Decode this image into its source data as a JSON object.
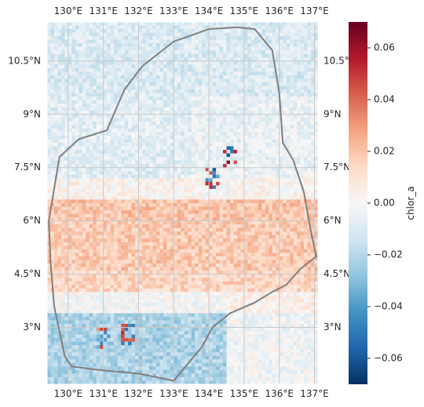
{
  "chart_data": {
    "type": "heatmap",
    "projection": "PlateCarree",
    "variable": "chlor_a",
    "lon_range": [
      129.4,
      137.1
    ],
    "lat_range": [
      1.4,
      11.6
    ],
    "color_scale": {
      "cmap": "RdBu_r",
      "vmin": -0.07,
      "vmax": 0.07
    },
    "grid": true,
    "lon_ticks": [
      130,
      131,
      132,
      133,
      134,
      135,
      136,
      137
    ],
    "lat_ticks": [
      3,
      4.5,
      6,
      7.5,
      9,
      10.5
    ],
    "lon_tick_labels": [
      "130°E",
      "131°E",
      "132°E",
      "133°E",
      "134°E",
      "135°E",
      "136°E",
      "137°E"
    ],
    "lat_tick_labels": [
      "3°N",
      "4.5°N",
      "6°N",
      "7.5°N",
      "9°N",
      "10.5°N"
    ],
    "colorbar": {
      "label": "chlor_a",
      "ticks": [
        -0.06,
        -0.04,
        -0.02,
        0.0,
        0.02,
        0.04,
        0.06
      ],
      "tick_labels": [
        "−0.06",
        "−0.04",
        "−0.02",
        "0.00",
        "0.02",
        "0.04",
        "0.06"
      ]
    },
    "anomaly_pattern": {
      "north_of_7N": -0.008,
      "band_4_to_7N": 0.018,
      "south_of_3_5N": -0.022,
      "hotspots": [
        {
          "lon": 134.6,
          "lat": 7.8,
          "value": 0.065
        },
        {
          "lon": 134.1,
          "lat": 7.2,
          "value": -0.06
        },
        {
          "lon": 131.7,
          "lat": 2.8,
          "value": 0.06
        },
        {
          "lon": 131.0,
          "lat": 2.7,
          "value": -0.05
        }
      ]
    },
    "boundary_outline": [
      [
        129.45,
        6.0
      ],
      [
        129.75,
        7.8
      ],
      [
        130.3,
        8.3
      ],
      [
        131.1,
        8.55
      ],
      [
        131.25,
        8.9
      ],
      [
        131.6,
        9.7
      ],
      [
        132.1,
        10.35
      ],
      [
        133.0,
        11.05
      ],
      [
        134.0,
        11.4
      ],
      [
        134.8,
        11.45
      ],
      [
        135.3,
        11.4
      ],
      [
        135.8,
        10.8
      ],
      [
        136.0,
        9.6
      ],
      [
        136.1,
        8.2
      ],
      [
        136.4,
        7.7
      ],
      [
        136.7,
        6.8
      ],
      [
        136.9,
        5.7
      ],
      [
        137.05,
        5.0
      ],
      [
        136.6,
        4.65
      ],
      [
        136.2,
        4.2
      ],
      [
        135.8,
        4.0
      ],
      [
        135.3,
        3.7
      ],
      [
        134.6,
        3.4
      ],
      [
        134.1,
        3.0
      ],
      [
        133.8,
        2.45
      ],
      [
        133.0,
        1.5
      ],
      [
        132.0,
        1.7
      ],
      [
        130.9,
        1.8
      ],
      [
        130.1,
        1.9
      ],
      [
        129.9,
        2.2
      ],
      [
        129.6,
        3.6
      ],
      [
        129.5,
        4.8
      ],
      [
        129.45,
        6.0
      ]
    ]
  }
}
